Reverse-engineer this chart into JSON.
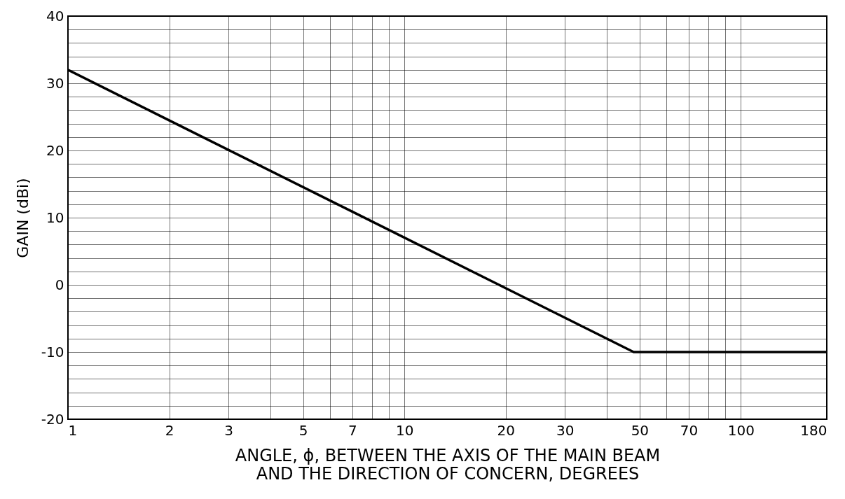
{
  "chart_data": {
    "type": "line",
    "xlabel": "ANGLE, ϕ, BETWEEN THE AXIS OF THE MAIN BEAM\nAND THE DIRECTION OF CONCERN, DEGREES",
    "ylabel": "GAIN (dBi)",
    "log": "x",
    "grid": true,
    "marker": "none",
    "line_style": "solid",
    "xlim": [
      1,
      180
    ],
    "ylim": [
      -20,
      40
    ],
    "xticks": [
      1,
      2,
      3,
      {
        "value": 4,
        "label": null
      },
      5,
      {
        "value": 6,
        "label": null
      },
      7,
      {
        "value": 8,
        "label": null
      },
      {
        "value": 9,
        "label": null
      },
      10,
      20,
      30,
      {
        "value": 40,
        "label": null
      },
      50,
      {
        "value": 60,
        "label": null
      },
      70,
      {
        "value": 80,
        "label": null
      },
      {
        "value": 90,
        "label": null
      },
      100,
      180
    ],
    "yticks": [
      -20,
      {
        "value": -18,
        "label": null
      },
      {
        "value": -16,
        "label": null
      },
      {
        "value": -14,
        "label": null
      },
      {
        "value": -12,
        "label": null
      },
      -10,
      {
        "value": -8,
        "label": null
      },
      {
        "value": -6,
        "label": null
      },
      {
        "value": -4,
        "label": null
      },
      {
        "value": -2,
        "label": null
      },
      0,
      {
        "value": 2,
        "label": null
      },
      {
        "value": 4,
        "label": null
      },
      {
        "value": 6,
        "label": null
      },
      {
        "value": 8,
        "label": null
      },
      10,
      {
        "value": 12,
        "label": null
      },
      {
        "value": 14,
        "label": null
      },
      {
        "value": 16,
        "label": null
      },
      {
        "value": 18,
        "label": null
      },
      20,
      {
        "value": 22,
        "label": null
      },
      {
        "value": 24,
        "label": null
      },
      {
        "value": 26,
        "label": null
      },
      {
        "value": 28,
        "label": null
      },
      30,
      {
        "value": 32,
        "label": null
      },
      {
        "value": 34,
        "label": null
      },
      {
        "value": 36,
        "label": null
      },
      {
        "value": 38,
        "label": null
      },
      40
    ],
    "series": [
      {
        "color": "#000000",
        "x": [
          1,
          48,
          180
        ],
        "values": [
          32,
          -10,
          -10
        ]
      }
    ]
  }
}
